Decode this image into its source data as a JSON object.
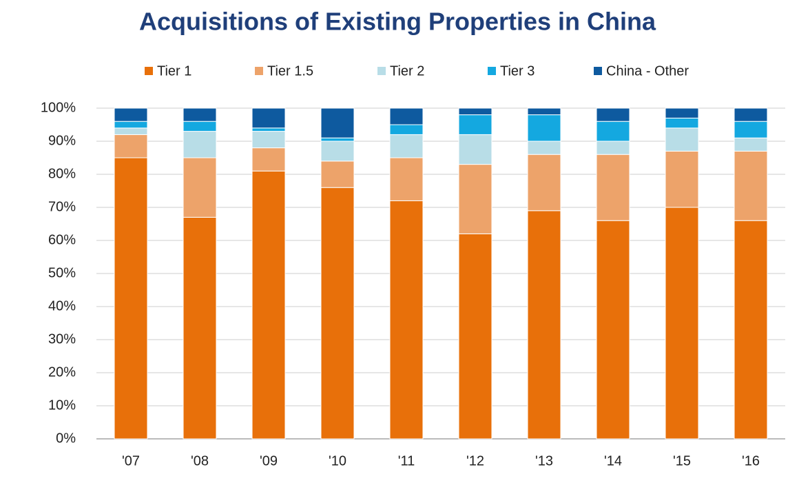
{
  "chart_data": {
    "type": "stacked_bar",
    "title": "Acquisitions of Existing Properties in China",
    "categories": [
      "'07",
      "'08",
      "'09",
      "'10",
      "'11",
      "'12",
      "'13",
      "'14",
      "'15",
      "'16"
    ],
    "series": [
      {
        "name": "Tier 1",
        "color": "#e8700a",
        "values": [
          85,
          67,
          81,
          76,
          72,
          62,
          69,
          66,
          70,
          66
        ]
      },
      {
        "name": "Tier 1.5",
        "color": "#eda36a",
        "values": [
          7,
          18,
          7,
          8,
          13,
          21,
          17,
          20,
          17,
          21
        ]
      },
      {
        "name": "Tier 2",
        "color": "#b8dde7",
        "values": [
          2,
          8,
          5,
          6,
          7,
          9,
          4,
          4,
          7,
          4
        ]
      },
      {
        "name": "Tier 3",
        "color": "#14a8e0",
        "values": [
          2,
          3,
          1,
          1,
          3,
          6,
          8,
          6,
          3,
          5
        ]
      },
      {
        "name": "China - Other",
        "color": "#0e5a9f",
        "values": [
          4,
          4,
          6,
          9,
          5,
          2,
          2,
          4,
          3,
          4
        ]
      }
    ],
    "ylim": [
      0,
      100
    ],
    "yticks": [
      {
        "value": 0,
        "label": "0%"
      },
      {
        "value": 10,
        "label": "10%"
      },
      {
        "value": 20,
        "label": "20%"
      },
      {
        "value": 30,
        "label": "30%"
      },
      {
        "value": 40,
        "label": "40%"
      },
      {
        "value": 50,
        "label": "50%"
      },
      {
        "value": 60,
        "label": "60%"
      },
      {
        "value": 70,
        "label": "70%"
      },
      {
        "value": 80,
        "label": "80%"
      },
      {
        "value": 90,
        "label": "90%"
      },
      {
        "value": 100,
        "label": "100%"
      }
    ],
    "grid": true
  }
}
